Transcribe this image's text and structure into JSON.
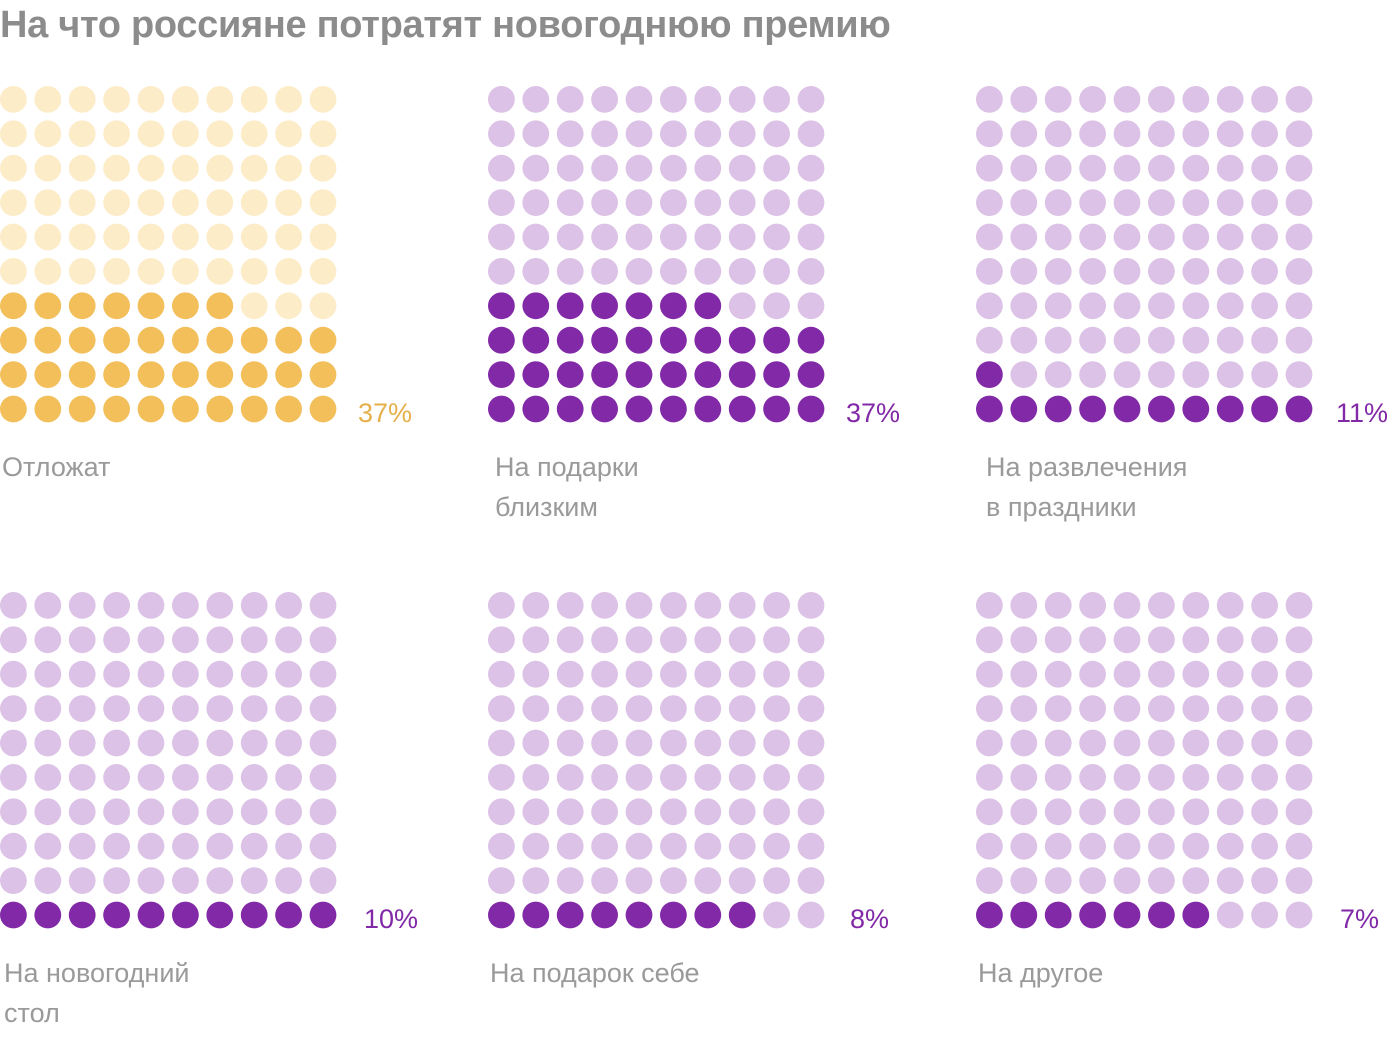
{
  "title": "На что россияне потратят новогоднюю премию",
  "colors": {
    "highlight": {
      "filled": "#f2bf5a",
      "empty": "#fdecc8",
      "text": "#e5b04a"
    },
    "default": {
      "filled": "#8129a6",
      "empty": "#dcc2e6",
      "text": "#8129a6"
    }
  },
  "chart_data": {
    "type": "waffle",
    "grid": {
      "rows": 10,
      "cols": 10,
      "fill_order": "bottom-up, left-to-right"
    },
    "panels": [
      {
        "label": "Отложат",
        "value": 37,
        "value_label": "37%",
        "palette": "highlight"
      },
      {
        "label": "На подарки\nблизким",
        "value": 37,
        "value_label": "37%",
        "palette": "default"
      },
      {
        "label": "На развлечения\nв праздники",
        "value": 11,
        "value_label": "11%",
        "palette": "default"
      },
      {
        "label": "На новогодний\nстол",
        "value": 10,
        "value_label": "10%",
        "palette": "default"
      },
      {
        "label": "На подарок себе",
        "value": 8,
        "value_label": "8%",
        "palette": "default"
      },
      {
        "label": "На другое",
        "value": 7,
        "value_label": "7%",
        "palette": "default"
      }
    ]
  }
}
